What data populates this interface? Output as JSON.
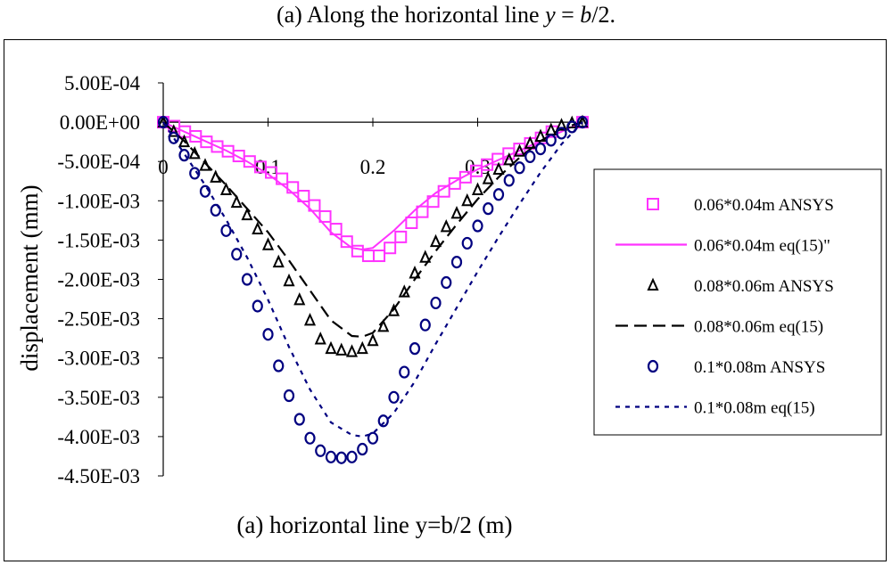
{
  "title_prefix": "(a) Along the horizontal line ",
  "title_var": "y",
  "title_eq": " = ",
  "title_frac_var": "b",
  "title_suffix": "/2.",
  "chart_data": {
    "type": "scatter",
    "xlabel": "(a) horizontal line y=b/2 (m)",
    "ylabel": "displacement (mm)",
    "xlim": [
      0,
      0.4
    ],
    "ylim": [
      -0.0045,
      0.0005
    ],
    "x_ticks": [
      "0",
      "0.1",
      "0.2",
      "0.3"
    ],
    "x_tick_values": [
      0,
      0.1,
      0.2,
      0.3
    ],
    "y_ticks": [
      "5.00E-04",
      "0.00E+00",
      "-5.00E-04",
      "-1.00E-03",
      "-1.50E-03",
      "-2.00E-03",
      "-2.50E-03",
      "-3.00E-03",
      "-3.50E-03",
      "-4.00E-03",
      "-4.50E-03"
    ],
    "y_tick_values": [
      0.0005,
      0,
      -0.0005,
      -0.001,
      -0.0015,
      -0.002,
      -0.0025,
      -0.003,
      -0.0035,
      -0.004,
      -0.0045
    ],
    "legend_position": "right",
    "series": [
      {
        "name": "0.06*0.04m ANSYS",
        "style": "square",
        "color": "#ff33ff",
        "x": [
          0,
          0.0103,
          0.0206,
          0.0309,
          0.0412,
          0.0515,
          0.0618,
          0.0721,
          0.0824,
          0.0927,
          0.103,
          0.1133,
          0.1236,
          0.1339,
          0.1442,
          0.1545,
          0.1648,
          0.1751,
          0.1854,
          0.1957,
          0.206,
          0.2163,
          0.2266,
          0.2369,
          0.2472,
          0.2575,
          0.2678,
          0.2781,
          0.2884,
          0.2987,
          0.309,
          0.3193,
          0.3296,
          0.3399,
          0.3502,
          0.3605,
          0.3708,
          0.4
        ],
        "y": [
          0,
          -5e-05,
          -0.00012,
          -0.00018,
          -0.00025,
          -0.00031,
          -0.00037,
          -0.00043,
          -0.0005,
          -0.00057,
          -0.00064,
          -0.00072,
          -0.00083,
          -0.00094,
          -0.00106,
          -0.0012,
          -0.00136,
          -0.00152,
          -0.00164,
          -0.0017,
          -0.0017,
          -0.0016,
          -0.00146,
          -0.00128,
          -0.00114,
          -0.00101,
          -0.00088,
          -0.00078,
          -0.0007,
          -0.00062,
          -0.00054,
          -0.00047,
          -0.0004,
          -0.00034,
          -0.00027,
          -0.0002,
          -0.00012,
          0
        ]
      },
      {
        "name": "0.06*0.04m eq(15)\"",
        "style": "solid",
        "color": "#ff33ff",
        "x": [
          0,
          0.02,
          0.04,
          0.06,
          0.08,
          0.1,
          0.12,
          0.14,
          0.16,
          0.18,
          0.19,
          0.2,
          0.22,
          0.24,
          0.26,
          0.28,
          0.3,
          0.32,
          0.34,
          0.36,
          0.38,
          0.4
        ],
        "y": [
          0,
          -0.00012,
          -0.00024,
          -0.00036,
          -0.0005,
          -0.00066,
          -0.00086,
          -0.0011,
          -0.0014,
          -0.0016,
          -0.00162,
          -0.0016,
          -0.00138,
          -0.00112,
          -0.0009,
          -0.00074,
          -0.0006,
          -0.00048,
          -0.00036,
          -0.00024,
          -0.00012,
          0
        ]
      },
      {
        "name": "0.08*0.06m ANSYS",
        "style": "triangle",
        "color": "#000000",
        "x": [
          0,
          0.01,
          0.02,
          0.03,
          0.04,
          0.05,
          0.06,
          0.07,
          0.08,
          0.09,
          0.1,
          0.11,
          0.12,
          0.13,
          0.14,
          0.15,
          0.16,
          0.17,
          0.18,
          0.19,
          0.2,
          0.21,
          0.22,
          0.23,
          0.24,
          0.25,
          0.26,
          0.27,
          0.28,
          0.29,
          0.3,
          0.31,
          0.32,
          0.33,
          0.34,
          0.35,
          0.36,
          0.37,
          0.38,
          0.39,
          0.4
        ],
        "y": [
          0,
          -0.00012,
          -0.00025,
          -0.0004,
          -0.00055,
          -0.0007,
          -0.00086,
          -0.00102,
          -0.00118,
          -0.00136,
          -0.00156,
          -0.00178,
          -0.00202,
          -0.00226,
          -0.00252,
          -0.00276,
          -0.00288,
          -0.0029,
          -0.00292,
          -0.00288,
          -0.00278,
          -0.0026,
          -0.0024,
          -0.00216,
          -0.00192,
          -0.00172,
          -0.00152,
          -0.00133,
          -0.00116,
          -0.001,
          -0.00086,
          -0.00072,
          -0.0006,
          -0.00048,
          -0.00037,
          -0.00027,
          -0.00018,
          -0.0001,
          -4e-05,
          -1e-05,
          0
        ]
      },
      {
        "name": "0.08*0.06m eq(15)",
        "style": "dashed",
        "color": "#000000",
        "x": [
          0,
          0.02,
          0.04,
          0.06,
          0.08,
          0.1,
          0.12,
          0.14,
          0.16,
          0.18,
          0.19,
          0.2,
          0.22,
          0.24,
          0.26,
          0.28,
          0.3,
          0.32,
          0.34,
          0.36,
          0.38,
          0.4
        ],
        "y": [
          0,
          -0.00024,
          -0.00052,
          -0.0008,
          -0.0011,
          -0.0014,
          -0.00176,
          -0.00214,
          -0.00252,
          -0.00272,
          -0.00273,
          -0.00268,
          -0.00238,
          -0.002,
          -0.00164,
          -0.0013,
          -0.00098,
          -0.0007,
          -0.00045,
          -0.00024,
          -8e-05,
          0
        ]
      },
      {
        "name": "0.1*0.08m ANSYS",
        "style": "circle",
        "color": "#000080",
        "x": [
          0,
          0.01,
          0.02,
          0.03,
          0.04,
          0.05,
          0.06,
          0.07,
          0.08,
          0.09,
          0.1,
          0.11,
          0.12,
          0.13,
          0.14,
          0.15,
          0.16,
          0.17,
          0.18,
          0.19,
          0.2,
          0.21,
          0.22,
          0.23,
          0.24,
          0.25,
          0.26,
          0.27,
          0.28,
          0.29,
          0.3,
          0.31,
          0.32,
          0.33,
          0.34,
          0.35,
          0.36,
          0.37,
          0.38,
          0.39,
          0.4
        ],
        "y": [
          0,
          -0.0002,
          -0.00042,
          -0.00065,
          -0.00088,
          -0.00112,
          -0.00138,
          -0.00168,
          -0.002,
          -0.00234,
          -0.0027,
          -0.0031,
          -0.00348,
          -0.00378,
          -0.00402,
          -0.00418,
          -0.00426,
          -0.00427,
          -0.00426,
          -0.00416,
          -0.00402,
          -0.0038,
          -0.0035,
          -0.00318,
          -0.00288,
          -0.00258,
          -0.0023,
          -0.00204,
          -0.00178,
          -0.00154,
          -0.00132,
          -0.0011,
          -0.00092,
          -0.00074,
          -0.00058,
          -0.00044,
          -0.00034,
          -0.00023,
          -0.00014,
          -6e-05,
          0
        ]
      },
      {
        "name": "0.1*0.08m eq(15)",
        "style": "dotted",
        "color": "#000080",
        "x": [
          0,
          0.02,
          0.04,
          0.06,
          0.08,
          0.1,
          0.12,
          0.14,
          0.16,
          0.18,
          0.19,
          0.2,
          0.22,
          0.24,
          0.26,
          0.28,
          0.3,
          0.32,
          0.34,
          0.36,
          0.38,
          0.4
        ],
        "y": [
          0,
          -0.0004,
          -0.0008,
          -0.00124,
          -0.00172,
          -0.00226,
          -0.00286,
          -0.0034,
          -0.00382,
          -0.00398,
          -0.004,
          -0.00396,
          -0.0037,
          -0.0033,
          -0.00282,
          -0.00236,
          -0.0019,
          -0.00146,
          -0.00104,
          -0.00064,
          -0.00028,
          0
        ]
      }
    ]
  }
}
